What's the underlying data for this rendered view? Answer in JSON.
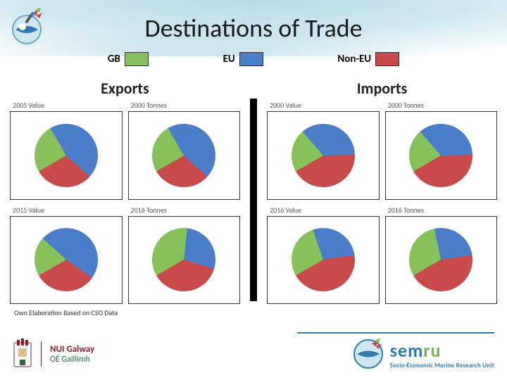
{
  "title": "Destinations of Trade",
  "colors": {
    "gb": "#86c15a",
    "eu": "#4a7ec9",
    "noneu": "#c94a4a",
    "swatch_border": "#333333",
    "chart_border": "#333333",
    "divider": "#000000",
    "background": "#ffffff",
    "wave": "#b8dce8"
  },
  "legend": [
    {
      "key": "gb",
      "label": "GB",
      "color": "#86c15a"
    },
    {
      "key": "eu",
      "label": "EU",
      "color": "#4a7ec9"
    },
    {
      "key": "noneu",
      "label": "Non-EU",
      "color": "#c94a4a"
    }
  ],
  "sections": {
    "exports": {
      "title": "Exports",
      "charts": [
        {
          "label": "2005 Value",
          "slices": {
            "gb": 25,
            "eu": 45,
            "noneu": 30
          }
        },
        {
          "label": "2000 Tonnes",
          "slices": {
            "gb": 25,
            "eu": 45,
            "noneu": 30
          }
        },
        {
          "label": "2015 Value",
          "slices": {
            "gb": 20,
            "eu": 48,
            "noneu": 32
          }
        },
        {
          "label": "2016 Tonnes",
          "slices": {
            "gb": 35,
            "eu": 28,
            "noneu": 37
          }
        }
      ]
    },
    "imports": {
      "title": "Imports",
      "charts": [
        {
          "label": "2000 Value",
          "slices": {
            "gb": 22,
            "eu": 36,
            "noneu": 42
          }
        },
        {
          "label": "2000 Tonnes",
          "slices": {
            "gb": 22,
            "eu": 36,
            "noneu": 42
          }
        },
        {
          "label": "2016 Value",
          "slices": {
            "gb": 28,
            "eu": 28,
            "noneu": 44
          }
        },
        {
          "label": "2016 Tonnes",
          "slices": {
            "gb": 30,
            "eu": 26,
            "noneu": 44
          }
        }
      ]
    }
  },
  "source_note": "Own Elaboration Based on CSO Data",
  "footer": {
    "nui": {
      "line1": "NUI Galway",
      "line2": "OÉ Gaillimh"
    },
    "semru": {
      "brand": "semru",
      "tagline": "Socio-Economic Marine Research Unit"
    }
  }
}
